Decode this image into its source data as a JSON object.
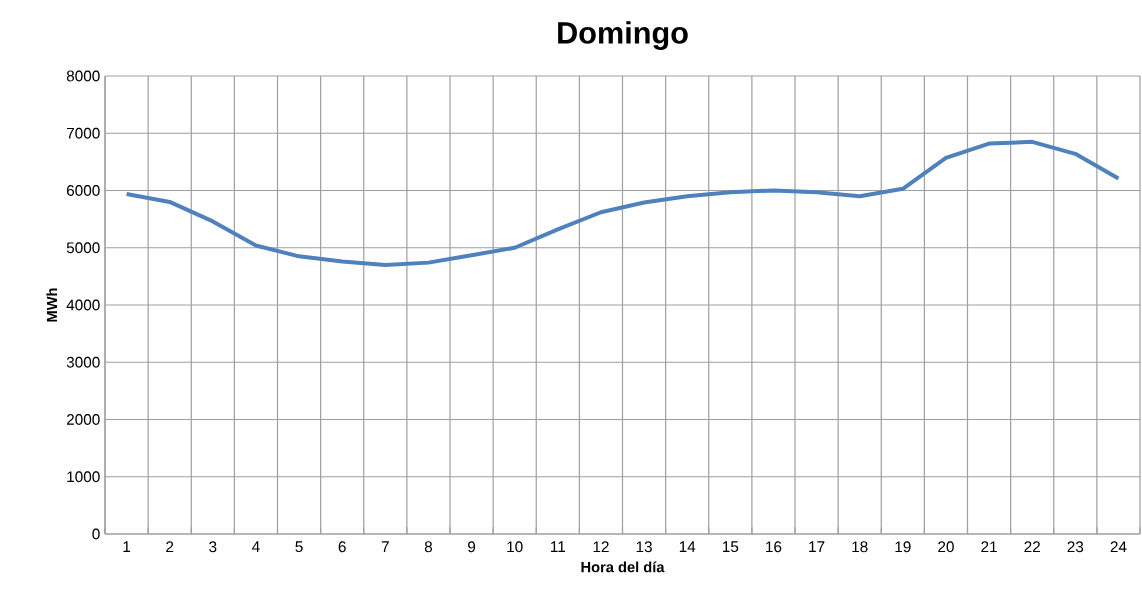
{
  "chart_data": {
    "type": "line",
    "title": "Domingo",
    "xlabel": "Hora del día",
    "ylabel": "MWh",
    "categories": [
      "1",
      "2",
      "3",
      "4",
      "5",
      "6",
      "7",
      "8",
      "9",
      "10",
      "11",
      "12",
      "13",
      "14",
      "15",
      "16",
      "17",
      "18",
      "19",
      "20",
      "21",
      "22",
      "23",
      "24"
    ],
    "series": [
      {
        "color": "#4f81bd",
        "values": [
          5940,
          5800,
          5460,
          5040,
          4850,
          4760,
          4700,
          4740,
          4870,
          5000,
          5320,
          5620,
          5790,
          5900,
          5970,
          6000,
          5970,
          5900,
          6030,
          6570,
          6820,
          6850,
          6640,
          6210
        ]
      }
    ],
    "ylim": [
      0,
      8000
    ],
    "yticks": [
      0,
      1000,
      2000,
      3000,
      4000,
      5000,
      6000,
      7000,
      8000
    ],
    "grid": true,
    "marker": "none",
    "line_style": "solid"
  }
}
